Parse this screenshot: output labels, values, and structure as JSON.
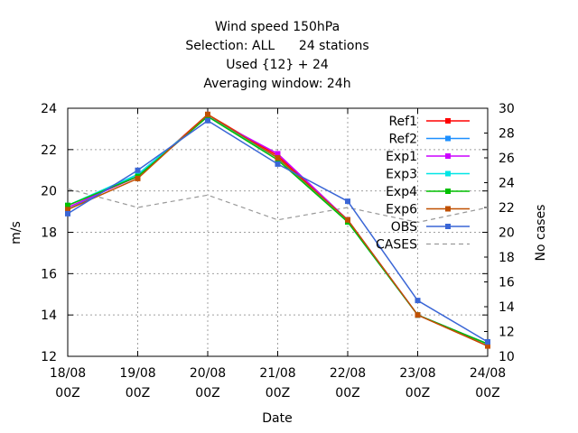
{
  "chart_data": {
    "type": "line",
    "title_lines": [
      "Wind speed 150hPa",
      "Selection: ALL      24 stations",
      "Used {12} + 24",
      "Averaging window: 24h"
    ],
    "xlabel": "Date",
    "ylabel": "m/s",
    "y2label": "No cases",
    "categories": [
      "18/08 00Z",
      "19/08 00Z",
      "20/08 00Z",
      "21/08 00Z",
      "22/08 00Z",
      "23/08 00Z",
      "24/08 00Z"
    ],
    "x_tick_labels": [
      [
        "18/08",
        "00Z"
      ],
      [
        "19/08",
        "00Z"
      ],
      [
        "20/08",
        "00Z"
      ],
      [
        "21/08",
        "00Z"
      ],
      [
        "22/08",
        "00Z"
      ],
      [
        "23/08",
        "00Z"
      ],
      [
        "24/08",
        "00Z"
      ]
    ],
    "ylim": [
      12,
      24
    ],
    "y_ticks": [
      12,
      14,
      16,
      18,
      20,
      22,
      24
    ],
    "y2lim": [
      10,
      30
    ],
    "y2_ticks": [
      10,
      12,
      14,
      16,
      18,
      20,
      22,
      24,
      26,
      28,
      30
    ],
    "grid": true,
    "legend_position": "top-right",
    "series": [
      {
        "name": "Ref1",
        "color": "#ff0000",
        "marker": "square",
        "values": [
          19.2,
          20.7,
          23.7,
          21.7,
          18.6,
          14.0,
          12.5
        ]
      },
      {
        "name": "Ref2",
        "color": "#1e90ff",
        "marker": "square",
        "values": [
          19.1,
          20.8,
          23.6,
          21.6,
          18.5,
          14.0,
          12.6
        ]
      },
      {
        "name": "Exp1",
        "color": "#cc00ff",
        "marker": "square",
        "values": [
          19.2,
          20.7,
          23.6,
          21.8,
          18.6,
          14.0,
          12.6
        ]
      },
      {
        "name": "Exp3",
        "color": "#00e5e5",
        "marker": "square",
        "values": [
          19.3,
          20.8,
          23.6,
          21.6,
          18.5,
          14.0,
          12.6
        ]
      },
      {
        "name": "Exp4",
        "color": "#00c000",
        "marker": "square",
        "values": [
          19.3,
          20.7,
          23.6,
          21.5,
          18.5,
          14.0,
          12.6
        ]
      },
      {
        "name": "Exp6",
        "color": "#c05000",
        "marker": "square",
        "values": [
          19.1,
          20.6,
          23.7,
          21.6,
          18.6,
          14.0,
          12.5
        ]
      },
      {
        "name": "OBS",
        "color": "#3a66d6",
        "marker": "square",
        "values": [
          18.9,
          21.0,
          23.4,
          21.3,
          19.5,
          14.7,
          12.7
        ]
      }
    ],
    "cases_series": {
      "name": "CASES",
      "axis": "y2",
      "color": "#999999",
      "dash": true,
      "values": [
        23.5,
        22,
        23,
        21,
        22,
        20.8,
        22
      ]
    }
  }
}
